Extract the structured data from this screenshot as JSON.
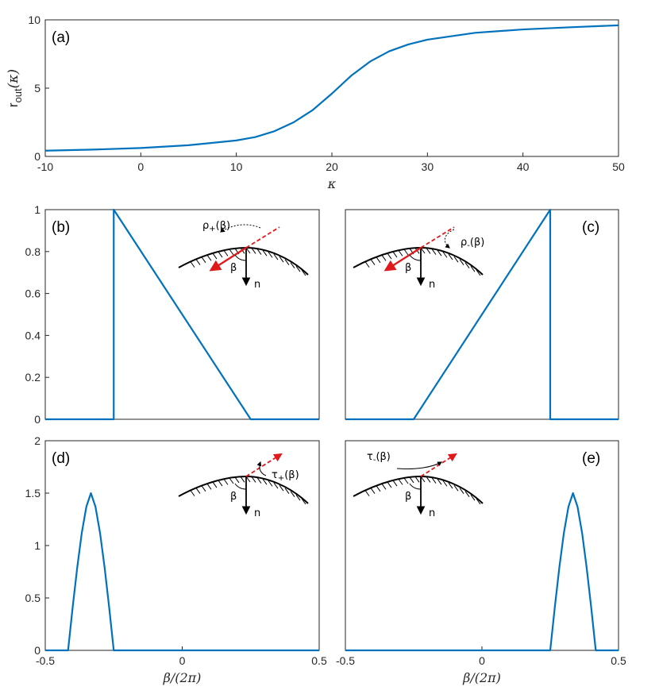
{
  "colors": {
    "curve": "#0072BD",
    "arrow": "#e0191b",
    "surface": "#000000"
  },
  "chart_data": [
    {
      "id": "a",
      "type": "line",
      "panel_label": "(a)",
      "ylabel_main": "r",
      "ylabel_sub": "out",
      "ylabel_arg": "(κ)",
      "xlabel": "κ",
      "xlim": [
        -10,
        50
      ],
      "ylim": [
        0,
        10
      ],
      "xticks": [
        -10,
        0,
        10,
        20,
        30,
        40,
        50
      ],
      "yticks": [
        0,
        5,
        10
      ],
      "series": [
        {
          "x": [
            -10,
            -5,
            0,
            5,
            10,
            12,
            14,
            16,
            18,
            20,
            22,
            24,
            26,
            28,
            30,
            35,
            40,
            45,
            50
          ],
          "y": [
            0.42,
            0.5,
            0.62,
            0.82,
            1.17,
            1.42,
            1.85,
            2.5,
            3.4,
            4.6,
            5.9,
            6.95,
            7.7,
            8.2,
            8.55,
            9.05,
            9.3,
            9.46,
            9.6
          ]
        }
      ]
    },
    {
      "id": "b",
      "type": "line",
      "panel_label": "(b)",
      "inset_label": "ρ+(β)",
      "inset_base": "ρ",
      "inset_sub": "+",
      "inset_arg": "(β)",
      "inset_beta": "β",
      "inset_n": "n",
      "xlim": [
        -0.5,
        0.5
      ],
      "ylim": [
        0,
        1
      ],
      "yticks": [
        0,
        0.2,
        0.4,
        0.6,
        0.8,
        1
      ],
      "series": [
        {
          "x": [
            -0.5,
            -0.25,
            -0.25,
            0.25,
            0.5
          ],
          "y": [
            0,
            0,
            1,
            0,
            0
          ]
        }
      ]
    },
    {
      "id": "c",
      "type": "line",
      "panel_label": "(c)",
      "inset_label": "ρ-(β)",
      "inset_base": "ρ",
      "inset_sub": "-",
      "inset_arg": "(β)",
      "inset_beta": "β",
      "inset_n": "n",
      "xlim": [
        -0.5,
        0.5
      ],
      "ylim": [
        0,
        1
      ],
      "series": [
        {
          "x": [
            -0.5,
            -0.25,
            0.25,
            0.25,
            0.5
          ],
          "y": [
            0,
            0,
            1,
            0,
            0
          ]
        }
      ]
    },
    {
      "id": "d",
      "type": "line",
      "panel_label": "(d)",
      "inset_label": "τ+(β)",
      "inset_base": "τ",
      "inset_sub": "+",
      "inset_arg": "(β)",
      "inset_beta": "β",
      "inset_n": "n",
      "xlabel": "β/(2π)",
      "xlim": [
        -0.5,
        0.5
      ],
      "ylim": [
        0,
        2
      ],
      "xticks": [
        -0.5,
        0,
        0.5
      ],
      "yticks": [
        0,
        0.5,
        1,
        1.5,
        2
      ],
      "series": [
        {
          "x": [
            -0.5,
            -0.4167,
            -0.4,
            -0.3833,
            -0.3667,
            -0.35,
            -0.3333,
            -0.3167,
            -0.3,
            -0.2833,
            -0.2667,
            -0.25,
            0.5
          ],
          "y": [
            0,
            0,
            0.41,
            0.79,
            1.12,
            1.37,
            1.5,
            1.37,
            1.12,
            0.79,
            0.41,
            0,
            0
          ]
        }
      ]
    },
    {
      "id": "e",
      "type": "line",
      "panel_label": "(e)",
      "inset_label": "τ-(β)",
      "inset_base": "τ",
      "inset_sub": "-",
      "inset_arg": "(β)",
      "inset_beta": "β",
      "inset_n": "n",
      "xlabel": "β/(2π)",
      "xlim": [
        -0.5,
        0.5
      ],
      "ylim": [
        0,
        2
      ],
      "xticks": [
        -0.5,
        0,
        0.5
      ],
      "series": [
        {
          "x": [
            -0.5,
            0.25,
            0.2667,
            0.2833,
            0.3,
            0.3167,
            0.3333,
            0.35,
            0.3667,
            0.3833,
            0.4,
            0.4167,
            0.5
          ],
          "y": [
            0,
            0,
            0.41,
            0.79,
            1.12,
            1.37,
            1.5,
            1.37,
            1.12,
            0.79,
            0.41,
            0,
            0
          ]
        }
      ]
    }
  ]
}
